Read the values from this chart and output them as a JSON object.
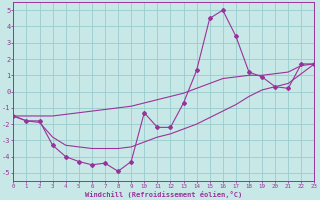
{
  "bg_color": "#c8e8e8",
  "grid_color": "#99cccc",
  "line_color": "#993399",
  "xlabel": "Windchill (Refroidissement éolien,°C)",
  "xlim": [
    0,
    23
  ],
  "ylim": [
    -5.5,
    5.5
  ],
  "xticks": [
    0,
    1,
    2,
    3,
    4,
    5,
    6,
    7,
    8,
    9,
    10,
    11,
    12,
    13,
    14,
    15,
    16,
    17,
    18,
    19,
    20,
    21,
    22,
    23
  ],
  "yticks": [
    -5,
    -4,
    -3,
    -2,
    -1,
    0,
    1,
    2,
    3,
    4,
    5
  ],
  "hours": [
    0,
    1,
    2,
    3,
    4,
    5,
    6,
    7,
    8,
    9,
    10,
    11,
    12,
    13,
    14,
    15,
    16,
    17,
    18,
    19,
    20,
    21,
    22,
    23
  ],
  "main_curve": [
    -1.5,
    -1.8,
    -1.8,
    -3.3,
    -4.0,
    -4.3,
    -4.5,
    -4.4,
    -4.9,
    -4.3,
    -1.3,
    -2.2,
    -2.2,
    -0.7,
    1.3,
    4.5,
    5.0,
    3.4,
    1.2,
    0.9,
    0.3,
    0.2,
    1.7,
    1.7
  ],
  "upper_curve": [
    -1.5,
    -1.5,
    -1.5,
    -1.5,
    -1.4,
    -1.3,
    -1.2,
    -1.1,
    -1.0,
    -0.9,
    -0.7,
    -0.5,
    -0.3,
    -0.1,
    0.2,
    0.5,
    0.8,
    0.9,
    1.0,
    1.0,
    1.1,
    1.2,
    1.6,
    1.7
  ],
  "lower_curve": [
    -1.5,
    -1.8,
    -1.9,
    -2.8,
    -3.3,
    -3.4,
    -3.5,
    -3.5,
    -3.5,
    -3.4,
    -3.1,
    -2.8,
    -2.6,
    -2.3,
    -2.0,
    -1.6,
    -1.2,
    -0.8,
    -0.3,
    0.1,
    0.3,
    0.5,
    1.1,
    1.7
  ]
}
